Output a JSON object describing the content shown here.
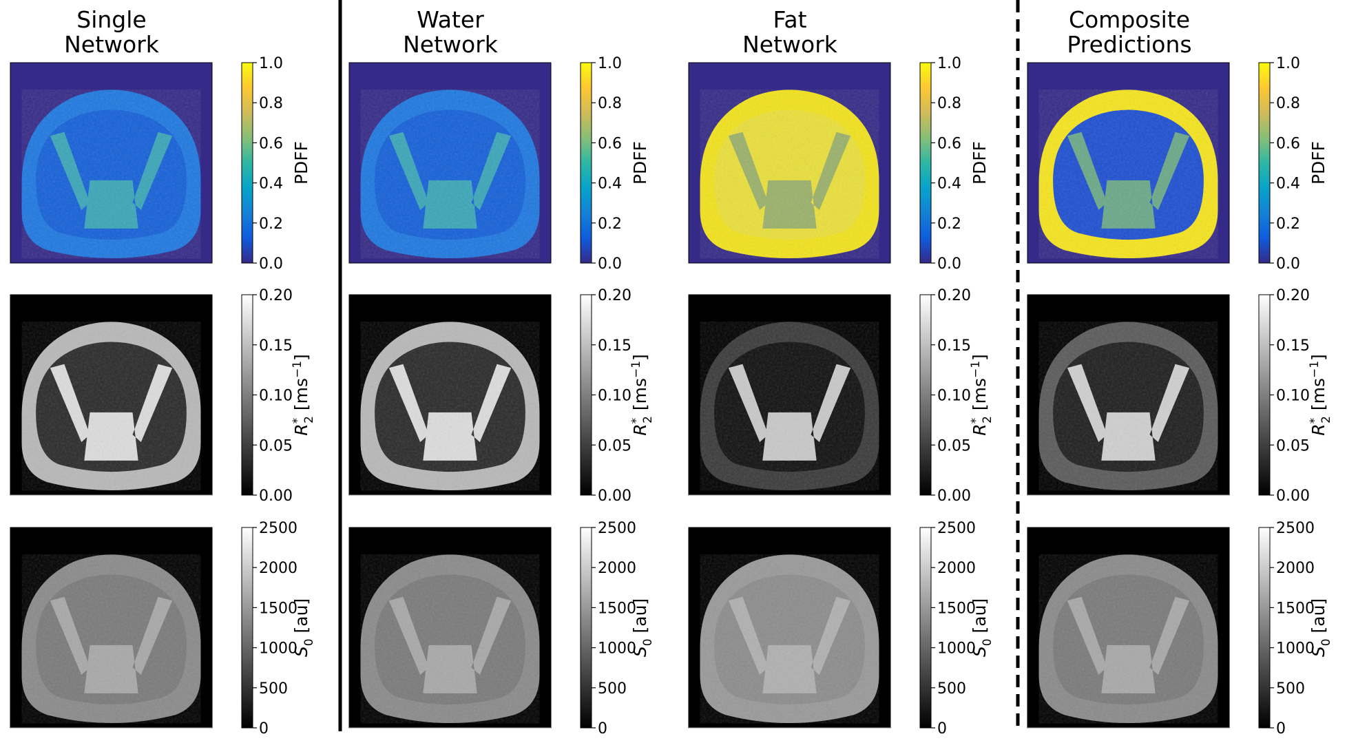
{
  "columns": [
    {
      "title_line1": "Single",
      "title_line2": "Network",
      "variant": "single"
    },
    {
      "title_line1": "Water",
      "title_line2": "Network",
      "variant": "water"
    },
    {
      "title_line1": "Fat",
      "title_line2": "Network",
      "variant": "fat"
    },
    {
      "title_line1": "Composite",
      "title_line2": "Predictions",
      "variant": "composite"
    }
  ],
  "rows": [
    {
      "id": "pdff",
      "label": "PDFF",
      "label_sup": "",
      "label_sub": "",
      "label_unit": "",
      "colormap": "viridis-like",
      "ticks": [
        "1.0",
        "0.8",
        "0.6",
        "0.4",
        "0.2",
        "0.0"
      ]
    },
    {
      "id": "r2star",
      "label": "R",
      "label_sub": "2",
      "label_sup": "*",
      "label_unit": " [ms",
      "label_unit_sup": "−1",
      "label_unit_end": "]",
      "colormap": "gray",
      "ticks": [
        "0.20",
        "0.15",
        "0.10",
        "0.05",
        "0.00"
      ]
    },
    {
      "id": "s0",
      "label": "S",
      "label_sub": "0",
      "label_sup": "",
      "label_unit": " [au]",
      "colormap": "gray",
      "ticks": [
        "2500",
        "2000",
        "1500",
        "1000",
        "500",
        "0"
      ]
    }
  ],
  "colors": {
    "pdff_background": "#352a87",
    "viridis_stops": [
      "#352a87",
      "#0f5cdd",
      "#1481d6",
      "#06a4ca",
      "#2eb7a4",
      "#87bf77",
      "#d1bb59",
      "#fec832",
      "#f9fb0e"
    ],
    "separator": "#000000"
  },
  "separators": [
    {
      "between": "single-water",
      "style": "solid"
    },
    {
      "between": "fat-composite",
      "style": "dashed"
    }
  ]
}
